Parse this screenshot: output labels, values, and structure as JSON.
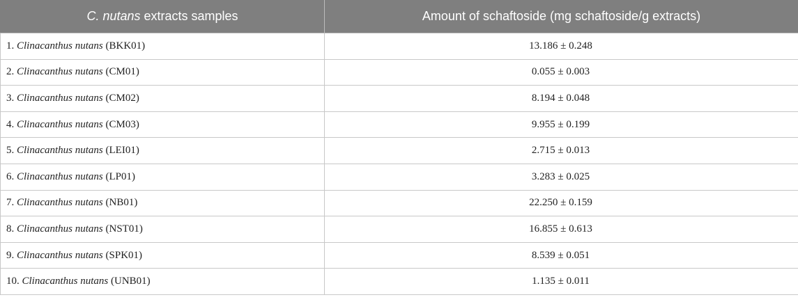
{
  "header": {
    "col1_prefix": "C. nutans",
    "col1_suffix": " extracts samples",
    "col2": "Amount of schaftoside (mg schaftoside/g extracts)"
  },
  "rows": [
    {
      "num": "1.",
      "species": "Clinacanthus nutans",
      "code": "(BKK01)",
      "amount": "13.186 ± 0.248"
    },
    {
      "num": "2.",
      "species": "Clinacanthus nutans",
      "code": "(CM01)",
      "amount": "0.055 ± 0.003"
    },
    {
      "num": "3.",
      "species": "Clinacanthus nutans",
      "code": "(CM02)",
      "amount": "8.194 ± 0.048"
    },
    {
      "num": "4.",
      "species": "Clinacanthus nutans",
      "code": "(CM03)",
      "amount": "9.955 ± 0.199"
    },
    {
      "num": "5.",
      "species": "Clinacanthus nutans",
      "code": "(LEI01)",
      "amount": "2.715 ± 0.013"
    },
    {
      "num": "6.",
      "species": "Clinacanthus nutans",
      "code": "(LP01)",
      "amount": "3.283 ± 0.025"
    },
    {
      "num": "7.",
      "species": "Clinacanthus nutans",
      "code": "(NB01)",
      "amount": "22.250 ± 0.159"
    },
    {
      "num": "8.",
      "species": "Clinacanthus nutans",
      "code": "(NST01)",
      "amount": "16.855 ± 0.613"
    },
    {
      "num": "9.",
      "species": "Clinacanthus nutans",
      "code": "(SPK01)",
      "amount": "8.539 ± 0.051"
    },
    {
      "num": "10.",
      "species": "Clinacanthus nutans",
      "code": "(UNB01)",
      "amount": "1.135 ± 0.011"
    }
  ]
}
